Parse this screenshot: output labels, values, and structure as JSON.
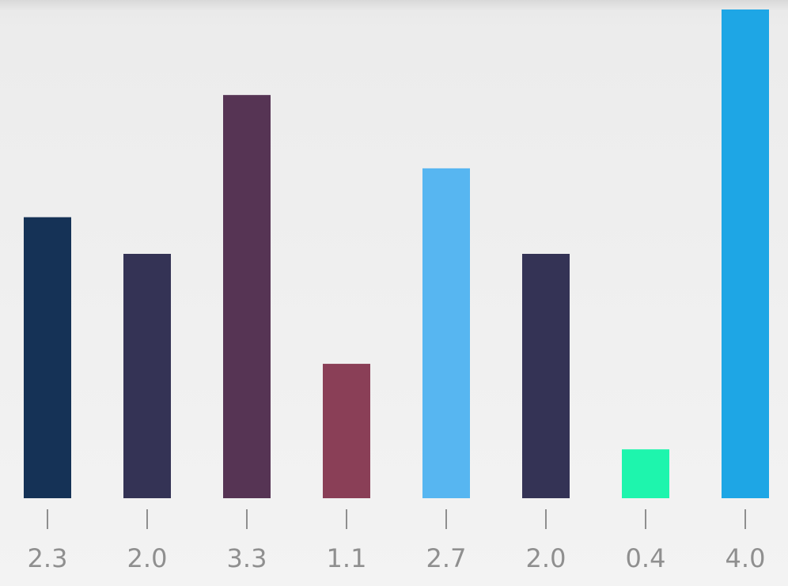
{
  "chart_data": {
    "type": "bar",
    "categories": [
      "2.3",
      "2.0",
      "3.3",
      "1.1",
      "2.7",
      "2.0",
      "0.4",
      "4.0"
    ],
    "values": [
      2.3,
      2.0,
      3.3,
      1.1,
      2.7,
      2.0,
      0.4,
      4.0
    ],
    "colors": [
      "#153256",
      "#343355",
      "#563454",
      "#8a3f57",
      "#57b6f1",
      "#343355",
      "#1ef5ad",
      "#1ea6e5"
    ],
    "title": "",
    "xlabel": "",
    "ylabel": "",
    "ylim": [
      0,
      4.0
    ],
    "grid": false,
    "legend": "none",
    "tick_label_color": "#8f8f8f",
    "tick_color": "#8f8f8f"
  }
}
